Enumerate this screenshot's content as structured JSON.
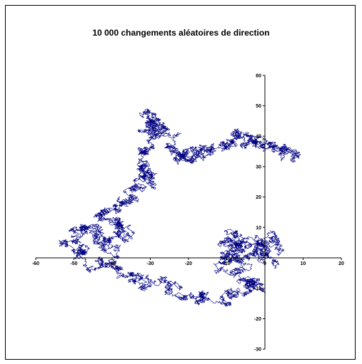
{
  "chart_data": {
    "type": "line",
    "title": "10 000 changements aléatoires de direction",
    "xlabel": "",
    "ylabel": "",
    "xlim": [
      -60,
      20
    ],
    "ylim": [
      -30,
      60
    ],
    "x_ticks": [
      -60,
      -50,
      -40,
      -30,
      -20,
      -10,
      0,
      10,
      20
    ],
    "y_ticks": [
      -30,
      -20,
      -10,
      10,
      20,
      30,
      40,
      50,
      60
    ],
    "grid": false,
    "legend": "none",
    "line_color": "#000080",
    "steps": 10000,
    "waypoints": [
      [
        2,
        -2
      ],
      [
        -1,
        2
      ],
      [
        -4,
        5
      ],
      [
        -8,
        8
      ],
      [
        -11,
        6
      ],
      [
        -10,
        0
      ],
      [
        -4,
        -3
      ],
      [
        0,
        2
      ],
      [
        1,
        6
      ],
      [
        -3,
        4
      ],
      [
        -7,
        2
      ],
      [
        -10,
        -2
      ],
      [
        -6,
        -6
      ],
      [
        -2,
        -8
      ],
      [
        -3,
        -10
      ],
      [
        -8,
        -12
      ],
      [
        -13,
        -14
      ],
      [
        -18,
        -13
      ],
      [
        -23,
        -11
      ],
      [
        -28,
        -8
      ],
      [
        -33,
        -5
      ],
      [
        -38,
        -3
      ],
      [
        -42,
        -4
      ],
      [
        -46,
        -2
      ],
      [
        -48,
        2
      ],
      [
        -50,
        5
      ],
      [
        -48,
        9
      ],
      [
        -45,
        10
      ],
      [
        -43,
        6
      ],
      [
        -40,
        3
      ],
      [
        -38,
        6
      ],
      [
        -36,
        9
      ],
      [
        -39,
        12
      ],
      [
        -42,
        14
      ],
      [
        -39,
        17
      ],
      [
        -36,
        20
      ],
      [
        -33,
        23
      ],
      [
        -31,
        26
      ],
      [
        -33,
        29
      ],
      [
        -32,
        31
      ],
      [
        -30,
        36
      ],
      [
        -28,
        40
      ],
      [
        -29,
        44
      ],
      [
        -31,
        47
      ],
      [
        -28,
        45
      ],
      [
        -26,
        41
      ],
      [
        -24,
        37
      ],
      [
        -22,
        34
      ],
      [
        -19,
        33
      ],
      [
        -17,
        34
      ],
      [
        -14,
        37
      ],
      [
        -11,
        39
      ],
      [
        -9,
        38
      ],
      [
        -6,
        39
      ],
      [
        -3,
        37
      ],
      [
        0,
        38
      ],
      [
        3,
        36
      ],
      [
        6,
        35
      ],
      [
        8,
        33
      ]
    ]
  }
}
